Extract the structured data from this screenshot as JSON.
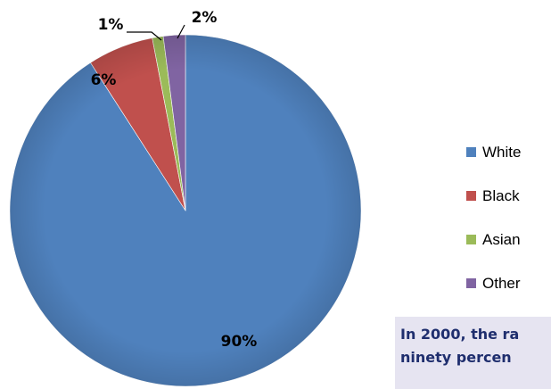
{
  "chart_data": {
    "type": "pie",
    "slices": [
      {
        "label": "White",
        "value": 90,
        "display": "90%",
        "color": "#4f81bd"
      },
      {
        "label": "Black",
        "value": 6,
        "display": "6%",
        "color": "#c0504d"
      },
      {
        "label": "Asian",
        "value": 1,
        "display": "1%",
        "color": "#9bbb59"
      },
      {
        "label": "Other",
        "value": 2,
        "display": "2%",
        "color": "#8064a2"
      }
    ],
    "legend_position": "right"
  },
  "note": {
    "line1": "In 2000, the ra",
    "line2": "ninety  percen"
  }
}
